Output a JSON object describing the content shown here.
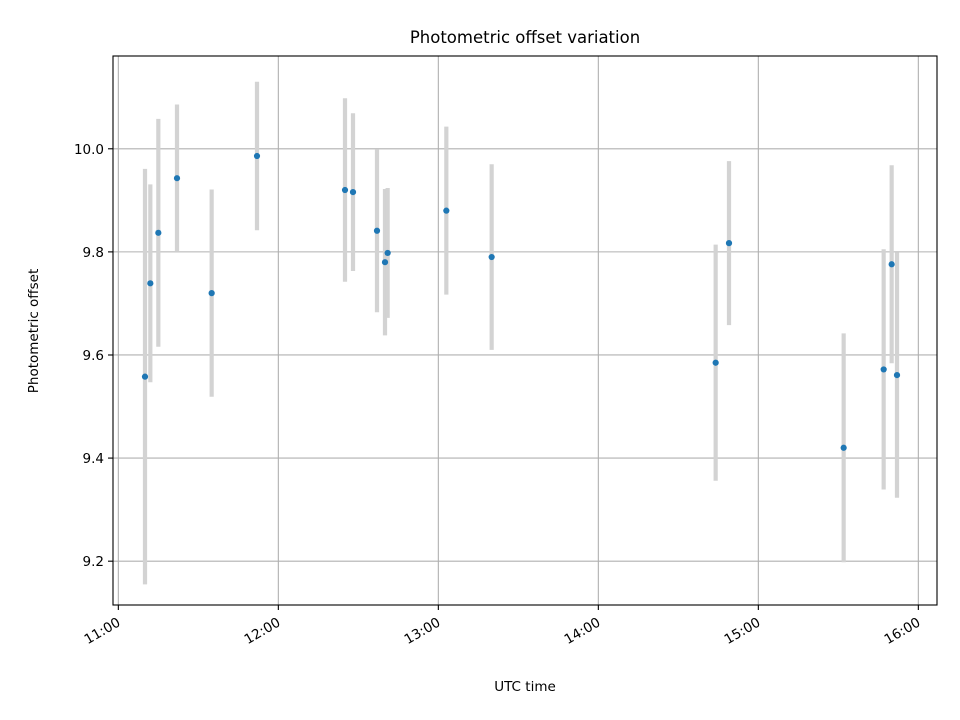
{
  "chart_data": {
    "type": "scatter",
    "title": "Photometric offset variation",
    "xlabel": "UTC time",
    "ylabel": "Photometric offset",
    "xlim": [
      "10:58",
      "16:07"
    ],
    "ylim": [
      9.115,
      10.18
    ],
    "xticks": [
      "11:00",
      "12:00",
      "13:00",
      "14:00",
      "15:00",
      "16:00"
    ],
    "yticks": [
      "9.2",
      "9.4",
      "9.6",
      "9.8",
      "10.0"
    ],
    "grid": true,
    "legend": "none",
    "colors": {
      "point": "#1f77b4",
      "errorbar": "#d3d3d3",
      "grid": "#b0b0b0"
    },
    "points": [
      {
        "x": "11:10",
        "y": 9.558,
        "yerr": 0.403
      },
      {
        "x": "11:12",
        "y": 9.739,
        "yerr": 0.192
      },
      {
        "x": "11:15",
        "y": 9.837,
        "yerr": 0.221
      },
      {
        "x": "11:22",
        "y": 9.943,
        "yerr": 0.143
      },
      {
        "x": "11:35",
        "y": 9.72,
        "yerr": 0.201
      },
      {
        "x": "11:52",
        "y": 9.986,
        "yerr": 0.144
      },
      {
        "x": "12:25",
        "y": 9.92,
        "yerr": 0.178
      },
      {
        "x": "12:28",
        "y": 9.916,
        "yerr": 0.153
      },
      {
        "x": "12:37",
        "y": 9.841,
        "yerr": 0.158
      },
      {
        "x": "12:40",
        "y": 9.78,
        "yerr": 0.142
      },
      {
        "x": "12:41",
        "y": 9.798,
        "yerr": 0.126
      },
      {
        "x": "13:03",
        "y": 9.88,
        "yerr": 0.163
      },
      {
        "x": "13:20",
        "y": 9.79,
        "yerr": 0.18
      },
      {
        "x": "14:44",
        "y": 9.585,
        "yerr": 0.229
      },
      {
        "x": "14:49",
        "y": 9.817,
        "yerr": 0.159
      },
      {
        "x": "15:32",
        "y": 9.42,
        "yerr": 0.222
      },
      {
        "x": "15:47",
        "y": 9.572,
        "yerr": 0.233
      },
      {
        "x": "15:50",
        "y": 9.776,
        "yerr": 0.192
      },
      {
        "x": "15:52",
        "y": 9.561,
        "yerr": 0.238
      }
    ]
  }
}
